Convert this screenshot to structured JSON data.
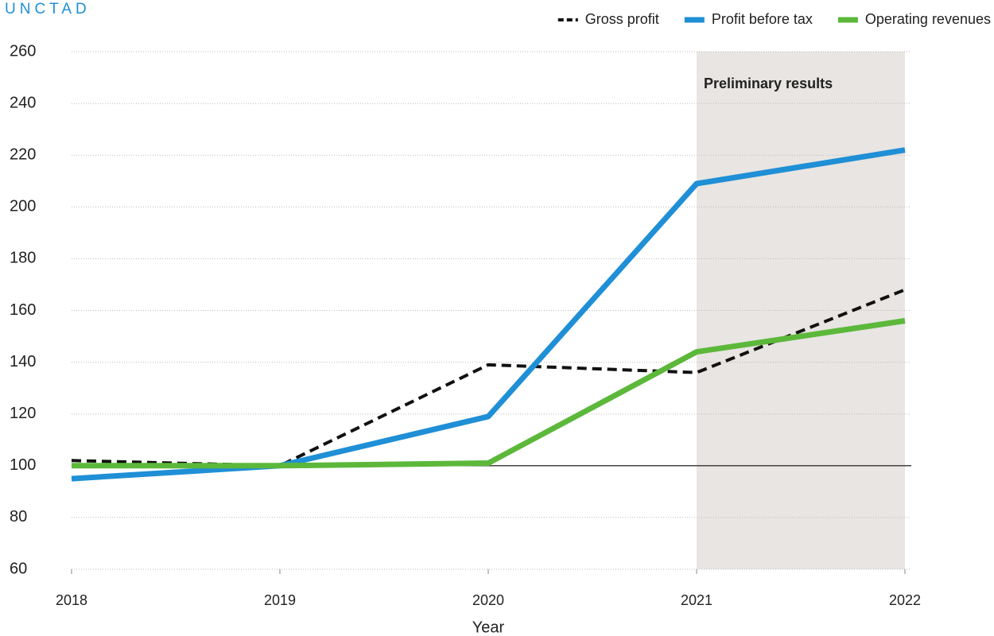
{
  "chart_data": {
    "type": "line",
    "brand": "UNCTAD",
    "x_label": "Year",
    "x": [
      2018,
      2019,
      2020,
      2021,
      2022
    ],
    "xlim": [
      2018,
      2022
    ],
    "xticks": [
      2018,
      2019,
      2020,
      2021,
      2022
    ],
    "ylim": [
      60,
      260
    ],
    "yticks": [
      60,
      80,
      100,
      120,
      140,
      160,
      180,
      200,
      220,
      240,
      260
    ],
    "grid": true,
    "grid_style": "dotted",
    "reference_line": 100,
    "shaded_region": {
      "from": 2021,
      "to": 2022,
      "label": "Preliminary results",
      "color": "#e8e5e2"
    },
    "legend": "top-right",
    "series": [
      {
        "name": "Gross profit",
        "color": "#111111",
        "line_style": "dashed",
        "values": [
          102,
          100,
          139,
          136,
          168
        ]
      },
      {
        "name": "Profit before tax",
        "color": "#1f8fd6",
        "line_style": "solid",
        "values": [
          95,
          100,
          119,
          209,
          222
        ]
      },
      {
        "name": "Operating revenues",
        "color": "#5cb83a",
        "line_style": "solid",
        "values": [
          100,
          100,
          101,
          144,
          156
        ]
      }
    ]
  }
}
